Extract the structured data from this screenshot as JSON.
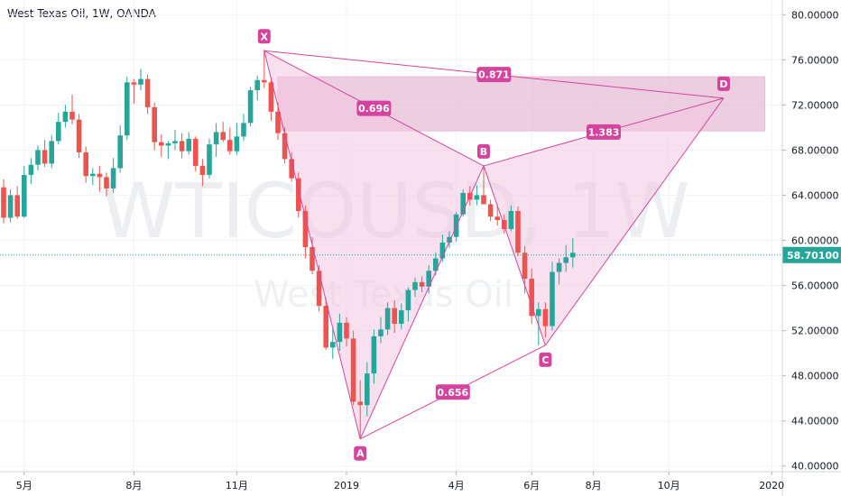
{
  "symbol_title": "West Texas Oil, 1W, OANDA",
  "watermark": {
    "symbol": "WTICOUSD, 1W",
    "description": "West Texas Oil"
  },
  "colors": {
    "up": "#26a69a",
    "down": "#ef5350",
    "pattern": "#d4449e",
    "pattern_fill": "#f3c6e2",
    "zone_fill": "#e7bcd6",
    "current_price": "#26a69a"
  },
  "current_price_label": "58.70100",
  "chart_data": {
    "type": "candlestick",
    "title": "West Texas Oil, 1W, OANDA",
    "ylim": [
      39.5,
      81.3
    ],
    "y_ticks": [
      "80.00000",
      "76.00000",
      "72.00000",
      "68.00000",
      "64.00000",
      "60.00000",
      "56.00000",
      "52.00000",
      "48.00000",
      "44.00000",
      "40.00000"
    ],
    "x_ticks": [
      "5月",
      "8月",
      "11月",
      "2019",
      "4月",
      "6月",
      "8月",
      "10月",
      "2020"
    ],
    "current_price": 58.701,
    "candles": [
      {
        "o": 64.7,
        "h": 65.4,
        "l": 61.5,
        "c": 62.0
      },
      {
        "o": 62.0,
        "h": 64.5,
        "l": 61.6,
        "c": 64.0
      },
      {
        "o": 64.0,
        "h": 64.8,
        "l": 61.9,
        "c": 62.1
      },
      {
        "o": 62.1,
        "h": 66.6,
        "l": 62.0,
        "c": 65.8
      },
      {
        "o": 65.8,
        "h": 67.3,
        "l": 65.0,
        "c": 66.7
      },
      {
        "o": 66.7,
        "h": 68.4,
        "l": 66.2,
        "c": 68.0
      },
      {
        "o": 68.0,
        "h": 68.9,
        "l": 66.5,
        "c": 66.8
      },
      {
        "o": 66.8,
        "h": 69.3,
        "l": 66.4,
        "c": 68.8
      },
      {
        "o": 68.8,
        "h": 71.3,
        "l": 68.5,
        "c": 70.5
      },
      {
        "o": 70.5,
        "h": 72.0,
        "l": 70.0,
        "c": 71.4
      },
      {
        "o": 71.4,
        "h": 72.9,
        "l": 70.3,
        "c": 70.7
      },
      {
        "o": 70.7,
        "h": 71.2,
        "l": 67.3,
        "c": 67.8
      },
      {
        "o": 67.8,
        "h": 68.3,
        "l": 65.1,
        "c": 65.7
      },
      {
        "o": 65.7,
        "h": 66.4,
        "l": 64.9,
        "c": 65.9
      },
      {
        "o": 65.9,
        "h": 66.6,
        "l": 64.3,
        "c": 65.6
      },
      {
        "o": 65.6,
        "h": 66.0,
        "l": 63.9,
        "c": 64.6
      },
      {
        "o": 64.6,
        "h": 67.3,
        "l": 64.2,
        "c": 66.4
      },
      {
        "o": 66.4,
        "h": 70.2,
        "l": 66.0,
        "c": 69.3
      },
      {
        "o": 69.3,
        "h": 74.5,
        "l": 68.9,
        "c": 74.0
      },
      {
        "o": 74.0,
        "h": 74.3,
        "l": 72.1,
        "c": 73.8
      },
      {
        "o": 73.8,
        "h": 75.2,
        "l": 73.3,
        "c": 74.3
      },
      {
        "o": 74.3,
        "h": 74.7,
        "l": 71.2,
        "c": 71.8
      },
      {
        "o": 71.8,
        "h": 72.2,
        "l": 68.0,
        "c": 68.7
      },
      {
        "o": 68.7,
        "h": 69.4,
        "l": 67.4,
        "c": 68.4
      },
      {
        "o": 68.4,
        "h": 68.8,
        "l": 67.2,
        "c": 68.6
      },
      {
        "o": 68.6,
        "h": 69.8,
        "l": 68.0,
        "c": 68.8
      },
      {
        "o": 68.8,
        "h": 69.5,
        "l": 67.3,
        "c": 67.9
      },
      {
        "o": 67.9,
        "h": 69.6,
        "l": 67.6,
        "c": 69.0
      },
      {
        "o": 69.0,
        "h": 69.2,
        "l": 66.1,
        "c": 66.6
      },
      {
        "o": 66.6,
        "h": 67.2,
        "l": 64.8,
        "c": 65.8
      },
      {
        "o": 65.8,
        "h": 69.0,
        "l": 65.5,
        "c": 68.5
      },
      {
        "o": 68.5,
        "h": 70.4,
        "l": 67.4,
        "c": 69.6
      },
      {
        "o": 69.6,
        "h": 70.5,
        "l": 68.7,
        "c": 68.9
      },
      {
        "o": 68.9,
        "h": 70.0,
        "l": 67.6,
        "c": 67.9
      },
      {
        "o": 67.9,
        "h": 70.4,
        "l": 67.6,
        "c": 69.2
      },
      {
        "o": 69.2,
        "h": 71.2,
        "l": 68.8,
        "c": 70.4
      },
      {
        "o": 70.4,
        "h": 73.6,
        "l": 70.1,
        "c": 73.3
      },
      {
        "o": 73.3,
        "h": 74.6,
        "l": 72.4,
        "c": 74.2
      },
      {
        "o": 74.2,
        "h": 76.9,
        "l": 73.5,
        "c": 74.0
      },
      {
        "o": 74.0,
        "h": 74.4,
        "l": 70.6,
        "c": 71.4
      },
      {
        "o": 71.4,
        "h": 72.2,
        "l": 68.9,
        "c": 69.5
      },
      {
        "o": 69.5,
        "h": 70.0,
        "l": 66.8,
        "c": 67.2
      },
      {
        "o": 67.2,
        "h": 67.8,
        "l": 65.2,
        "c": 65.5
      },
      {
        "o": 65.5,
        "h": 66.0,
        "l": 62.0,
        "c": 62.6
      },
      {
        "o": 62.6,
        "h": 63.1,
        "l": 58.4,
        "c": 59.4
      },
      {
        "o": 59.4,
        "h": 60.3,
        "l": 57.0,
        "c": 57.3
      },
      {
        "o": 57.3,
        "h": 57.8,
        "l": 53.7,
        "c": 54.2
      },
      {
        "o": 54.2,
        "h": 54.9,
        "l": 50.3,
        "c": 50.5
      },
      {
        "o": 50.5,
        "h": 52.2,
        "l": 49.5,
        "c": 51.0
      },
      {
        "o": 51.0,
        "h": 53.5,
        "l": 50.2,
        "c": 52.7
      },
      {
        "o": 52.7,
        "h": 53.2,
        "l": 50.6,
        "c": 51.3
      },
      {
        "o": 51.3,
        "h": 52.0,
        "l": 45.4,
        "c": 45.7
      },
      {
        "o": 45.7,
        "h": 47.6,
        "l": 42.5,
        "c": 45.4
      },
      {
        "o": 45.4,
        "h": 49.2,
        "l": 44.4,
        "c": 48.2
      },
      {
        "o": 48.2,
        "h": 52.1,
        "l": 47.3,
        "c": 51.5
      },
      {
        "o": 51.5,
        "h": 53.2,
        "l": 50.9,
        "c": 52.1
      },
      {
        "o": 52.1,
        "h": 54.5,
        "l": 51.6,
        "c": 54.0
      },
      {
        "o": 54.0,
        "h": 54.7,
        "l": 51.8,
        "c": 52.6
      },
      {
        "o": 52.6,
        "h": 54.4,
        "l": 52.1,
        "c": 53.8
      },
      {
        "o": 53.8,
        "h": 55.8,
        "l": 52.8,
        "c": 55.6
      },
      {
        "o": 55.6,
        "h": 56.7,
        "l": 55.0,
        "c": 56.3
      },
      {
        "o": 56.3,
        "h": 56.8,
        "l": 55.4,
        "c": 55.9
      },
      {
        "o": 55.9,
        "h": 57.8,
        "l": 55.3,
        "c": 57.3
      },
      {
        "o": 57.3,
        "h": 58.9,
        "l": 56.9,
        "c": 58.4
      },
      {
        "o": 58.4,
        "h": 60.5,
        "l": 58.1,
        "c": 59.8
      },
      {
        "o": 59.8,
        "h": 60.8,
        "l": 59.3,
        "c": 60.3
      },
      {
        "o": 60.3,
        "h": 62.5,
        "l": 59.9,
        "c": 62.3
      },
      {
        "o": 62.3,
        "h": 64.5,
        "l": 62.1,
        "c": 64.2
      },
      {
        "o": 64.2,
        "h": 64.8,
        "l": 63.1,
        "c": 63.6
      },
      {
        "o": 63.6,
        "h": 64.9,
        "l": 63.1,
        "c": 64.0
      },
      {
        "o": 64.0,
        "h": 66.6,
        "l": 63.4,
        "c": 63.2
      },
      {
        "o": 63.2,
        "h": 63.6,
        "l": 61.7,
        "c": 62.1
      },
      {
        "o": 62.1,
        "h": 63.2,
        "l": 61.3,
        "c": 61.8
      },
      {
        "o": 61.8,
        "h": 62.3,
        "l": 60.6,
        "c": 61.0
      },
      {
        "o": 61.0,
        "h": 63.1,
        "l": 60.8,
        "c": 62.6
      },
      {
        "o": 62.6,
        "h": 63.0,
        "l": 58.6,
        "c": 58.9
      },
      {
        "o": 58.9,
        "h": 59.5,
        "l": 55.3,
        "c": 56.6
      },
      {
        "o": 56.6,
        "h": 57.5,
        "l": 52.6,
        "c": 53.3
      },
      {
        "o": 53.3,
        "h": 54.5,
        "l": 50.7,
        "c": 53.9
      },
      {
        "o": 53.9,
        "h": 54.5,
        "l": 51.4,
        "c": 52.4
      },
      {
        "o": 52.4,
        "h": 58.1,
        "l": 52.0,
        "c": 57.2
      },
      {
        "o": 57.2,
        "h": 58.4,
        "l": 56.1,
        "c": 58.0
      },
      {
        "o": 58.0,
        "h": 59.6,
        "l": 57.2,
        "c": 58.5
      },
      {
        "o": 58.5,
        "h": 60.2,
        "l": 57.6,
        "c": 58.9
      }
    ],
    "pattern": {
      "points": [
        {
          "label": "X",
          "bar": 38,
          "price": 76.8,
          "label_side": "above"
        },
        {
          "label": "A",
          "bar": 52,
          "price": 42.4,
          "label_side": "below"
        },
        {
          "label": "B",
          "bar": 70,
          "price": 66.6,
          "label_side": "above"
        },
        {
          "label": "C",
          "bar": 79,
          "price": 50.7,
          "label_side": "below"
        },
        {
          "label": "D",
          "bar": 105,
          "price": 72.6,
          "label_side": "above"
        }
      ],
      "ratios": [
        {
          "value": "0.696",
          "from": "X",
          "to": "B"
        },
        {
          "value": "0.656",
          "from": "A",
          "to": "C"
        },
        {
          "value": "1.383",
          "from": "B",
          "to": "D"
        },
        {
          "value": "0.871",
          "from": "X",
          "to": "D"
        }
      ],
      "zone": {
        "price_low": 69.7,
        "price_high": 74.5,
        "bar_start": 40,
        "bar_end": 111
      }
    }
  }
}
